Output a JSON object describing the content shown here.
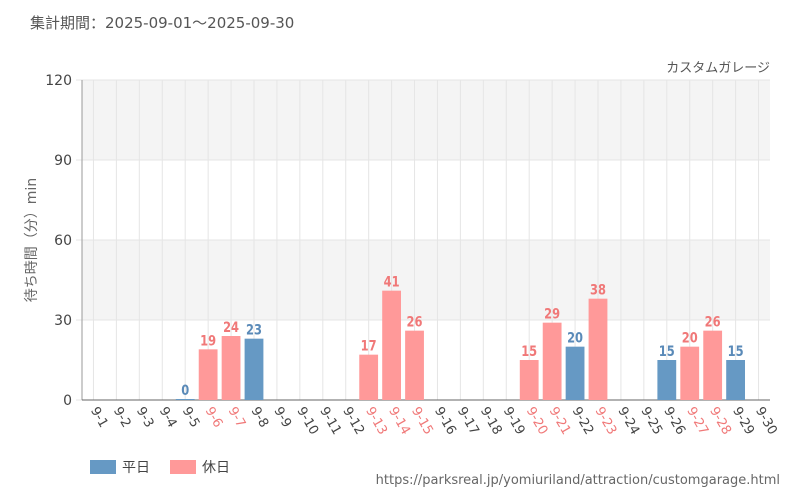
{
  "header": {
    "period_label": "集計期間：2025-09-01～2025-09-30"
  },
  "source_url": "https://parksreal.jp/yomiuriland/attraction/customgarage.html",
  "legend": [
    {
      "label": "平日",
      "color": "#6699c4"
    },
    {
      "label": "休日",
      "color": "#ff9999"
    }
  ],
  "colors": {
    "weekday": "#6699c4",
    "weekday_text": "#5a8ab8",
    "holiday": "#ff9999",
    "holiday_text": "#f07878",
    "axis_text": "#444444",
    "grid": "#e5e5e5",
    "band": "#f4f4f4"
  },
  "chart_data": {
    "type": "bar",
    "title": "カスタムガレージ",
    "xlabel": "",
    "ylabel": "待ち時間（分）min",
    "ylim": [
      0,
      120
    ],
    "yticks": [
      0,
      30,
      60,
      90,
      120
    ],
    "categories": [
      "9-1",
      "9-2",
      "9-3",
      "9-4",
      "9-5",
      "9-6",
      "9-7",
      "9-8",
      "9-9",
      "9-10",
      "9-11",
      "9-12",
      "9-13",
      "9-14",
      "9-15",
      "9-16",
      "9-17",
      "9-18",
      "9-19",
      "9-20",
      "9-21",
      "9-22",
      "9-23",
      "9-24",
      "9-25",
      "9-26",
      "9-27",
      "9-28",
      "9-29",
      "9-30"
    ],
    "day_type": [
      "weekday",
      "weekday",
      "weekday",
      "weekday",
      "weekday",
      "holiday",
      "holiday",
      "weekday",
      "weekday",
      "weekday",
      "weekday",
      "weekday",
      "holiday",
      "holiday",
      "holiday",
      "weekday",
      "weekday",
      "weekday",
      "weekday",
      "holiday",
      "holiday",
      "weekday",
      "holiday",
      "weekday",
      "weekday",
      "weekday",
      "holiday",
      "holiday",
      "weekday",
      "weekday"
    ],
    "values": [
      null,
      null,
      null,
      null,
      0,
      19,
      24,
      23,
      null,
      null,
      null,
      null,
      17,
      41,
      26,
      null,
      null,
      null,
      null,
      15,
      29,
      20,
      38,
      null,
      null,
      15,
      20,
      26,
      15,
      null
    ]
  }
}
